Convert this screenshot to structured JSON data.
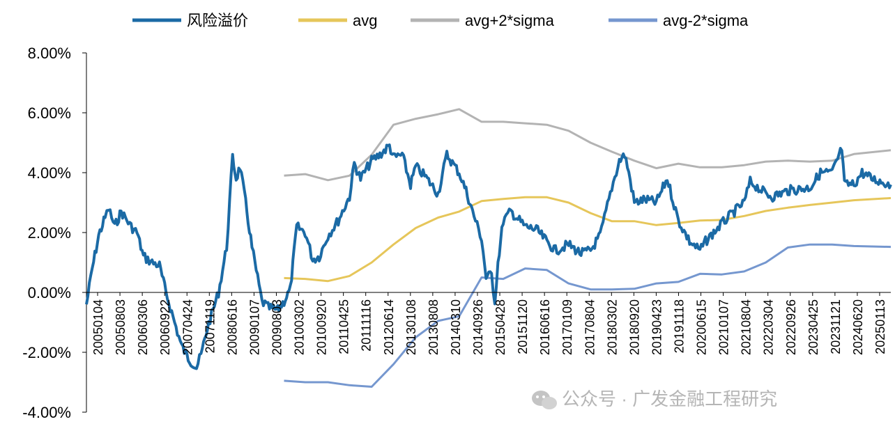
{
  "chart_data": {
    "type": "line",
    "title": "",
    "xlabel": "",
    "ylabel": "",
    "ylim": [
      -0.04,
      0.08
    ],
    "y_tick_values": [
      -0.04,
      -0.02,
      0.0,
      0.02,
      0.04,
      0.06,
      0.08
    ],
    "y_tick_labels": [
      "-4.00%",
      "-2.00%",
      "0.00%",
      "2.00%",
      "4.00%",
      "6.00%",
      "8.00%"
    ],
    "x_range": [
      "20050104",
      "20251231"
    ],
    "x_tick_labels": [
      "20050104",
      "20050803",
      "20060306",
      "20060922",
      "20070424",
      "20071119",
      "20080616",
      "20090107",
      "20090803",
      "20100302",
      "20100920",
      "20110425",
      "20111116",
      "20120614",
      "20130108",
      "20130808",
      "20140310",
      "20140926",
      "20150428",
      "20151120",
      "20160616",
      "20170109",
      "20170804",
      "20180302",
      "20180920",
      "20190423",
      "20191118",
      "20200615",
      "20210107",
      "20210804",
      "20220304",
      "20220926",
      "20230425",
      "20231121",
      "20240620",
      "20250113"
    ],
    "legend_position": "top",
    "grid": false,
    "series": [
      {
        "name": "风险溢价",
        "color": "#1b6aa5",
        "points": [
          [
            "2005-01-04",
            -0.004
          ],
          [
            "2005-03-01",
            0.008
          ],
          [
            "2005-05-01",
            0.019
          ],
          [
            "2005-07-01",
            0.025
          ],
          [
            "2005-08-03",
            0.028
          ],
          [
            "2005-10-01",
            0.022
          ],
          [
            "2005-12-01",
            0.027
          ],
          [
            "2006-03-06",
            0.022
          ],
          [
            "2006-05-01",
            0.02
          ],
          [
            "2006-07-01",
            0.012
          ],
          [
            "2006-09-22",
            0.01
          ],
          [
            "2006-12-01",
            0.009
          ],
          [
            "2007-02-01",
            0.0
          ],
          [
            "2007-04-24",
            -0.01
          ],
          [
            "2007-07-01",
            -0.018
          ],
          [
            "2007-09-01",
            -0.022
          ],
          [
            "2007-11-19",
            -0.025
          ],
          [
            "2008-01-01",
            -0.021
          ],
          [
            "2008-03-01",
            -0.012
          ],
          [
            "2008-06-16",
            0.0
          ],
          [
            "2008-09-01",
            0.015
          ],
          [
            "2008-10-28",
            0.045
          ],
          [
            "2008-12-01",
            0.038
          ],
          [
            "2009-01-07",
            0.042
          ],
          [
            "2009-03-01",
            0.03
          ],
          [
            "2009-05-01",
            0.015
          ],
          [
            "2009-08-03",
            -0.003
          ],
          [
            "2009-10-01",
            -0.005
          ],
          [
            "2010-01-01",
            -0.006
          ],
          [
            "2010-03-02",
            -0.003
          ],
          [
            "2010-05-01",
            0.001
          ],
          [
            "2010-07-01",
            0.022
          ],
          [
            "2010-09-20",
            0.02
          ],
          [
            "2010-12-01",
            0.011
          ],
          [
            "2011-02-01",
            0.012
          ],
          [
            "2011-04-25",
            0.019
          ],
          [
            "2011-08-01",
            0.024
          ],
          [
            "2011-11-16",
            0.032
          ],
          [
            "2012-01-01",
            0.043
          ],
          [
            "2012-03-01",
            0.038
          ],
          [
            "2012-06-14",
            0.044
          ],
          [
            "2012-09-01",
            0.046
          ],
          [
            "2012-12-01",
            0.049
          ],
          [
            "2013-01-08",
            0.045
          ],
          [
            "2013-04-01",
            0.046
          ],
          [
            "2013-06-20",
            0.036
          ],
          [
            "2013-08-08",
            0.042
          ],
          [
            "2013-11-01",
            0.039
          ],
          [
            "2014-03-10",
            0.033
          ],
          [
            "2014-06-01",
            0.046
          ],
          [
            "2014-09-26",
            0.04
          ],
          [
            "2014-12-01",
            0.034
          ],
          [
            "2015-02-01",
            0.027
          ],
          [
            "2015-04-28",
            0.018
          ],
          [
            "2015-06-10",
            0.005
          ],
          [
            "2015-08-01",
            0.006
          ],
          [
            "2015-09-01",
            -0.003
          ],
          [
            "2015-10-01",
            0.01
          ],
          [
            "2015-11-20",
            0.024
          ],
          [
            "2016-02-01",
            0.027
          ],
          [
            "2016-06-16",
            0.022
          ],
          [
            "2016-10-01",
            0.021
          ],
          [
            "2017-01-09",
            0.017
          ],
          [
            "2017-04-01",
            0.014
          ],
          [
            "2017-08-04",
            0.016
          ],
          [
            "2017-12-01",
            0.013
          ],
          [
            "2018-03-02",
            0.014
          ],
          [
            "2018-06-01",
            0.019
          ],
          [
            "2018-09-20",
            0.035
          ],
          [
            "2018-12-01",
            0.044
          ],
          [
            "2019-01-20",
            0.046
          ],
          [
            "2019-03-01",
            0.04
          ],
          [
            "2019-04-23",
            0.03
          ],
          [
            "2019-08-01",
            0.031
          ],
          [
            "2019-11-18",
            0.03
          ],
          [
            "2020-03-01",
            0.038
          ],
          [
            "2020-06-15",
            0.024
          ],
          [
            "2020-10-01",
            0.017
          ],
          [
            "2021-01-07",
            0.014
          ],
          [
            "2021-03-01",
            0.017
          ],
          [
            "2021-08-04",
            0.023
          ],
          [
            "2021-12-01",
            0.027
          ],
          [
            "2022-03-04",
            0.03
          ],
          [
            "2022-05-01",
            0.037
          ],
          [
            "2022-09-26",
            0.033
          ],
          [
            "2022-12-01",
            0.032
          ],
          [
            "2023-04-25",
            0.034
          ],
          [
            "2023-11-21",
            0.035
          ],
          [
            "2024-03-01",
            0.04
          ],
          [
            "2024-06-20",
            0.04
          ],
          [
            "2024-09-20",
            0.048
          ],
          [
            "2024-10-15",
            0.036
          ],
          [
            "2025-01-13",
            0.036
          ],
          [
            "2025-04-01",
            0.04
          ],
          [
            "2025-07-01",
            0.038
          ],
          [
            "2025-12-31",
            0.036
          ]
        ]
      },
      {
        "name": "avg",
        "color": "#e6c65a",
        "points": [
          [
            "2010-03-02",
            0.0048
          ],
          [
            "2010-09-20",
            0.0045
          ],
          [
            "2011-04-25",
            0.0038
          ],
          [
            "2011-11-16",
            0.0055
          ],
          [
            "2012-06-14",
            0.01
          ],
          [
            "2013-01-08",
            0.016
          ],
          [
            "2013-08-08",
            0.0215
          ],
          [
            "2014-03-10",
            0.025
          ],
          [
            "2014-09-26",
            0.027
          ],
          [
            "2015-04-28",
            0.0305
          ],
          [
            "2015-11-20",
            0.0312
          ],
          [
            "2016-06-16",
            0.0318
          ],
          [
            "2017-01-09",
            0.0318
          ],
          [
            "2017-08-04",
            0.03
          ],
          [
            "2018-03-02",
            0.0265
          ],
          [
            "2018-09-20",
            0.0238
          ],
          [
            "2019-04-23",
            0.0238
          ],
          [
            "2019-11-18",
            0.0225
          ],
          [
            "2020-06-15",
            0.0232
          ],
          [
            "2021-01-07",
            0.024
          ],
          [
            "2021-08-04",
            0.0242
          ],
          [
            "2022-03-04",
            0.0255
          ],
          [
            "2022-09-26",
            0.0272
          ],
          [
            "2023-04-25",
            0.0283
          ],
          [
            "2023-11-21",
            0.0292
          ],
          [
            "2024-06-20",
            0.03
          ],
          [
            "2025-01-13",
            0.0308
          ],
          [
            "2025-12-31",
            0.0315
          ]
        ]
      },
      {
        "name": "avg+2*sigma",
        "color": "#b3b3b3",
        "points": [
          [
            "2010-03-02",
            0.039
          ],
          [
            "2010-09-20",
            0.0395
          ],
          [
            "2011-04-25",
            0.0375
          ],
          [
            "2011-11-16",
            0.039
          ],
          [
            "2012-06-14",
            0.046
          ],
          [
            "2013-01-08",
            0.056
          ],
          [
            "2013-08-08",
            0.058
          ],
          [
            "2014-03-10",
            0.0595
          ],
          [
            "2014-09-26",
            0.0612
          ],
          [
            "2015-04-28",
            0.057
          ],
          [
            "2015-11-20",
            0.057
          ],
          [
            "2016-06-16",
            0.0565
          ],
          [
            "2017-01-09",
            0.056
          ],
          [
            "2017-08-04",
            0.054
          ],
          [
            "2018-03-02",
            0.05
          ],
          [
            "2018-09-20",
            0.047
          ],
          [
            "2019-04-23",
            0.044
          ],
          [
            "2019-11-18",
            0.0415
          ],
          [
            "2020-06-15",
            0.043
          ],
          [
            "2021-01-07",
            0.0418
          ],
          [
            "2021-08-04",
            0.0418
          ],
          [
            "2022-03-04",
            0.0425
          ],
          [
            "2022-09-26",
            0.0437
          ],
          [
            "2023-04-25",
            0.044
          ],
          [
            "2023-11-21",
            0.0437
          ],
          [
            "2024-06-20",
            0.044
          ],
          [
            "2025-01-13",
            0.0462
          ],
          [
            "2025-12-31",
            0.0475
          ]
        ]
      },
      {
        "name": "avg-2*sigma",
        "color": "#7597cf",
        "points": [
          [
            "2010-03-02",
            -0.0295
          ],
          [
            "2010-09-20",
            -0.03
          ],
          [
            "2011-04-25",
            -0.03
          ],
          [
            "2011-11-16",
            -0.031
          ],
          [
            "2012-06-14",
            -0.0315
          ],
          [
            "2013-01-08",
            -0.024
          ],
          [
            "2013-08-08",
            -0.015
          ],
          [
            "2014-03-10",
            -0.0095
          ],
          [
            "2014-09-26",
            -0.008
          ],
          [
            "2015-04-28",
            0.005
          ],
          [
            "2015-11-20",
            0.0045
          ],
          [
            "2016-06-16",
            0.008
          ],
          [
            "2017-01-09",
            0.0075
          ],
          [
            "2017-08-04",
            0.003
          ],
          [
            "2018-03-02",
            0.001
          ],
          [
            "2018-09-20",
            0.001
          ],
          [
            "2019-04-23",
            0.0012
          ],
          [
            "2019-11-18",
            0.003
          ],
          [
            "2020-06-15",
            0.0035
          ],
          [
            "2021-01-07",
            0.0062
          ],
          [
            "2021-08-04",
            0.006
          ],
          [
            "2022-03-04",
            0.007
          ],
          [
            "2022-09-26",
            0.01
          ],
          [
            "2023-04-25",
            0.015
          ],
          [
            "2023-11-21",
            0.016
          ],
          [
            "2024-06-20",
            0.016
          ],
          [
            "2025-01-13",
            0.0155
          ],
          [
            "2025-12-31",
            0.0152
          ]
        ]
      }
    ]
  },
  "watermark": "公众号 · 广发金融工程研究"
}
